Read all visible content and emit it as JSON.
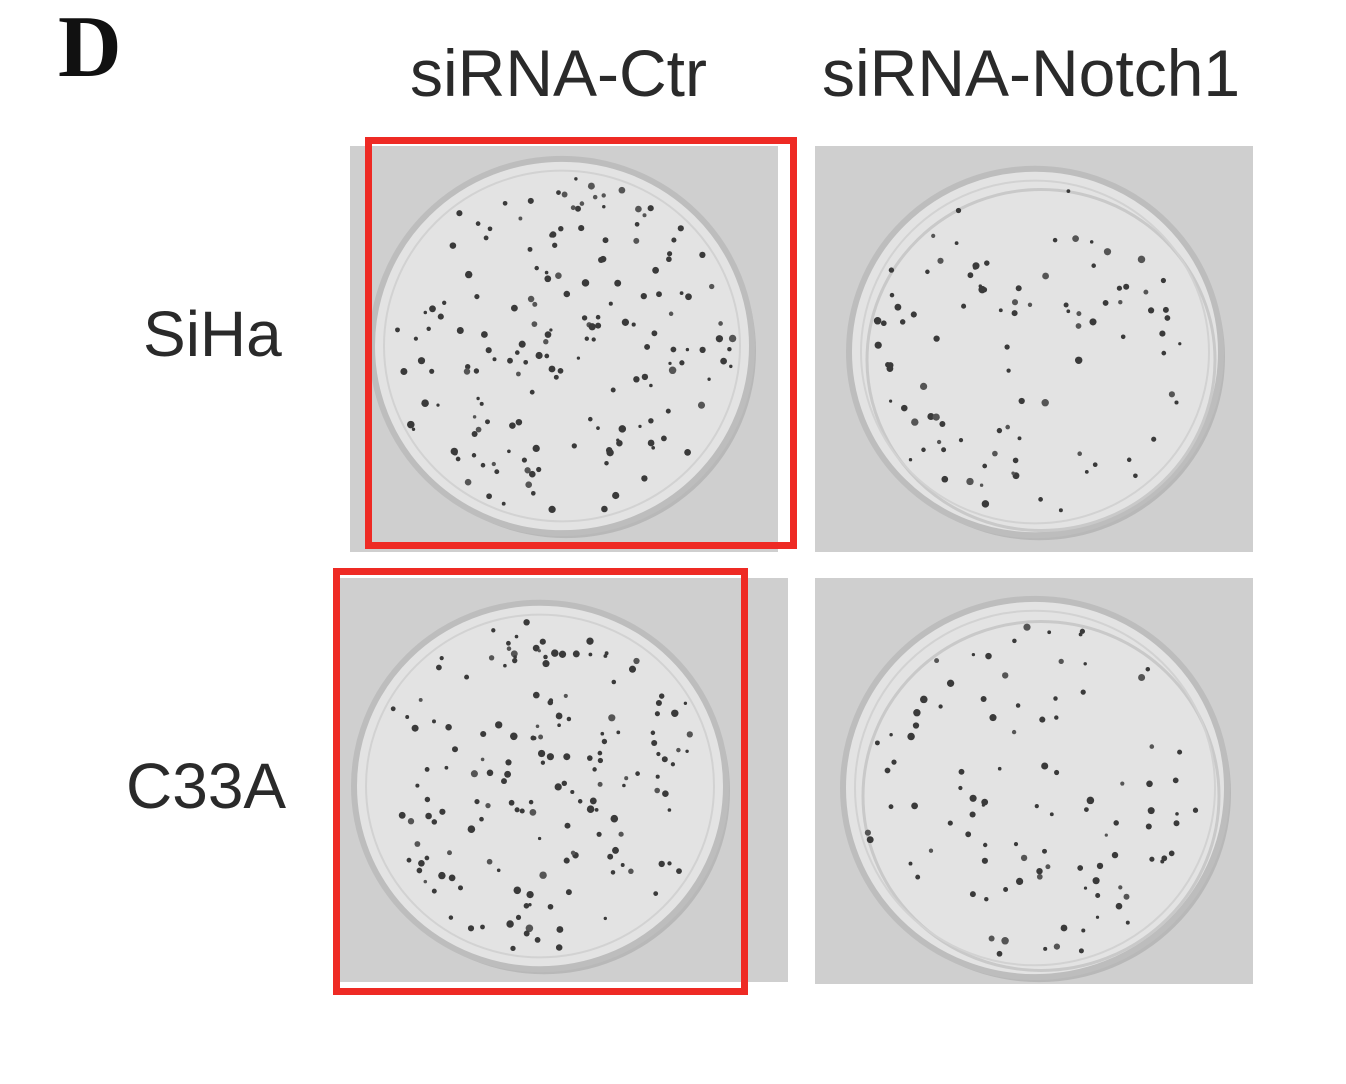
{
  "figure": {
    "panel_label": "D",
    "columns": [
      "siRNA-Ctr",
      "siRNA-Notch1"
    ],
    "rows": [
      "SiHa",
      "C33A"
    ]
  },
  "colors": {
    "highlight": "#ee2a24",
    "photo_background": "#cfcfcf",
    "dish_fill": "#e3e3e3",
    "dish_rim": "#bdbdbd",
    "colony": "#3a3a3a"
  },
  "plates": [
    {
      "row": "SiHa",
      "column": "siRNA-Ctr",
      "highlighted": true,
      "colony_density": "high",
      "colony_count": 170
    },
    {
      "row": "SiHa",
      "column": "siRNA-Notch1",
      "highlighted": false,
      "colony_density": "low",
      "colony_count": 95
    },
    {
      "row": "C33A",
      "column": "siRNA-Ctr",
      "highlighted": true,
      "colony_density": "high",
      "colony_count": 165
    },
    {
      "row": "C33A",
      "column": "siRNA-Notch1",
      "highlighted": false,
      "colony_density": "low",
      "colony_count": 100
    }
  ]
}
